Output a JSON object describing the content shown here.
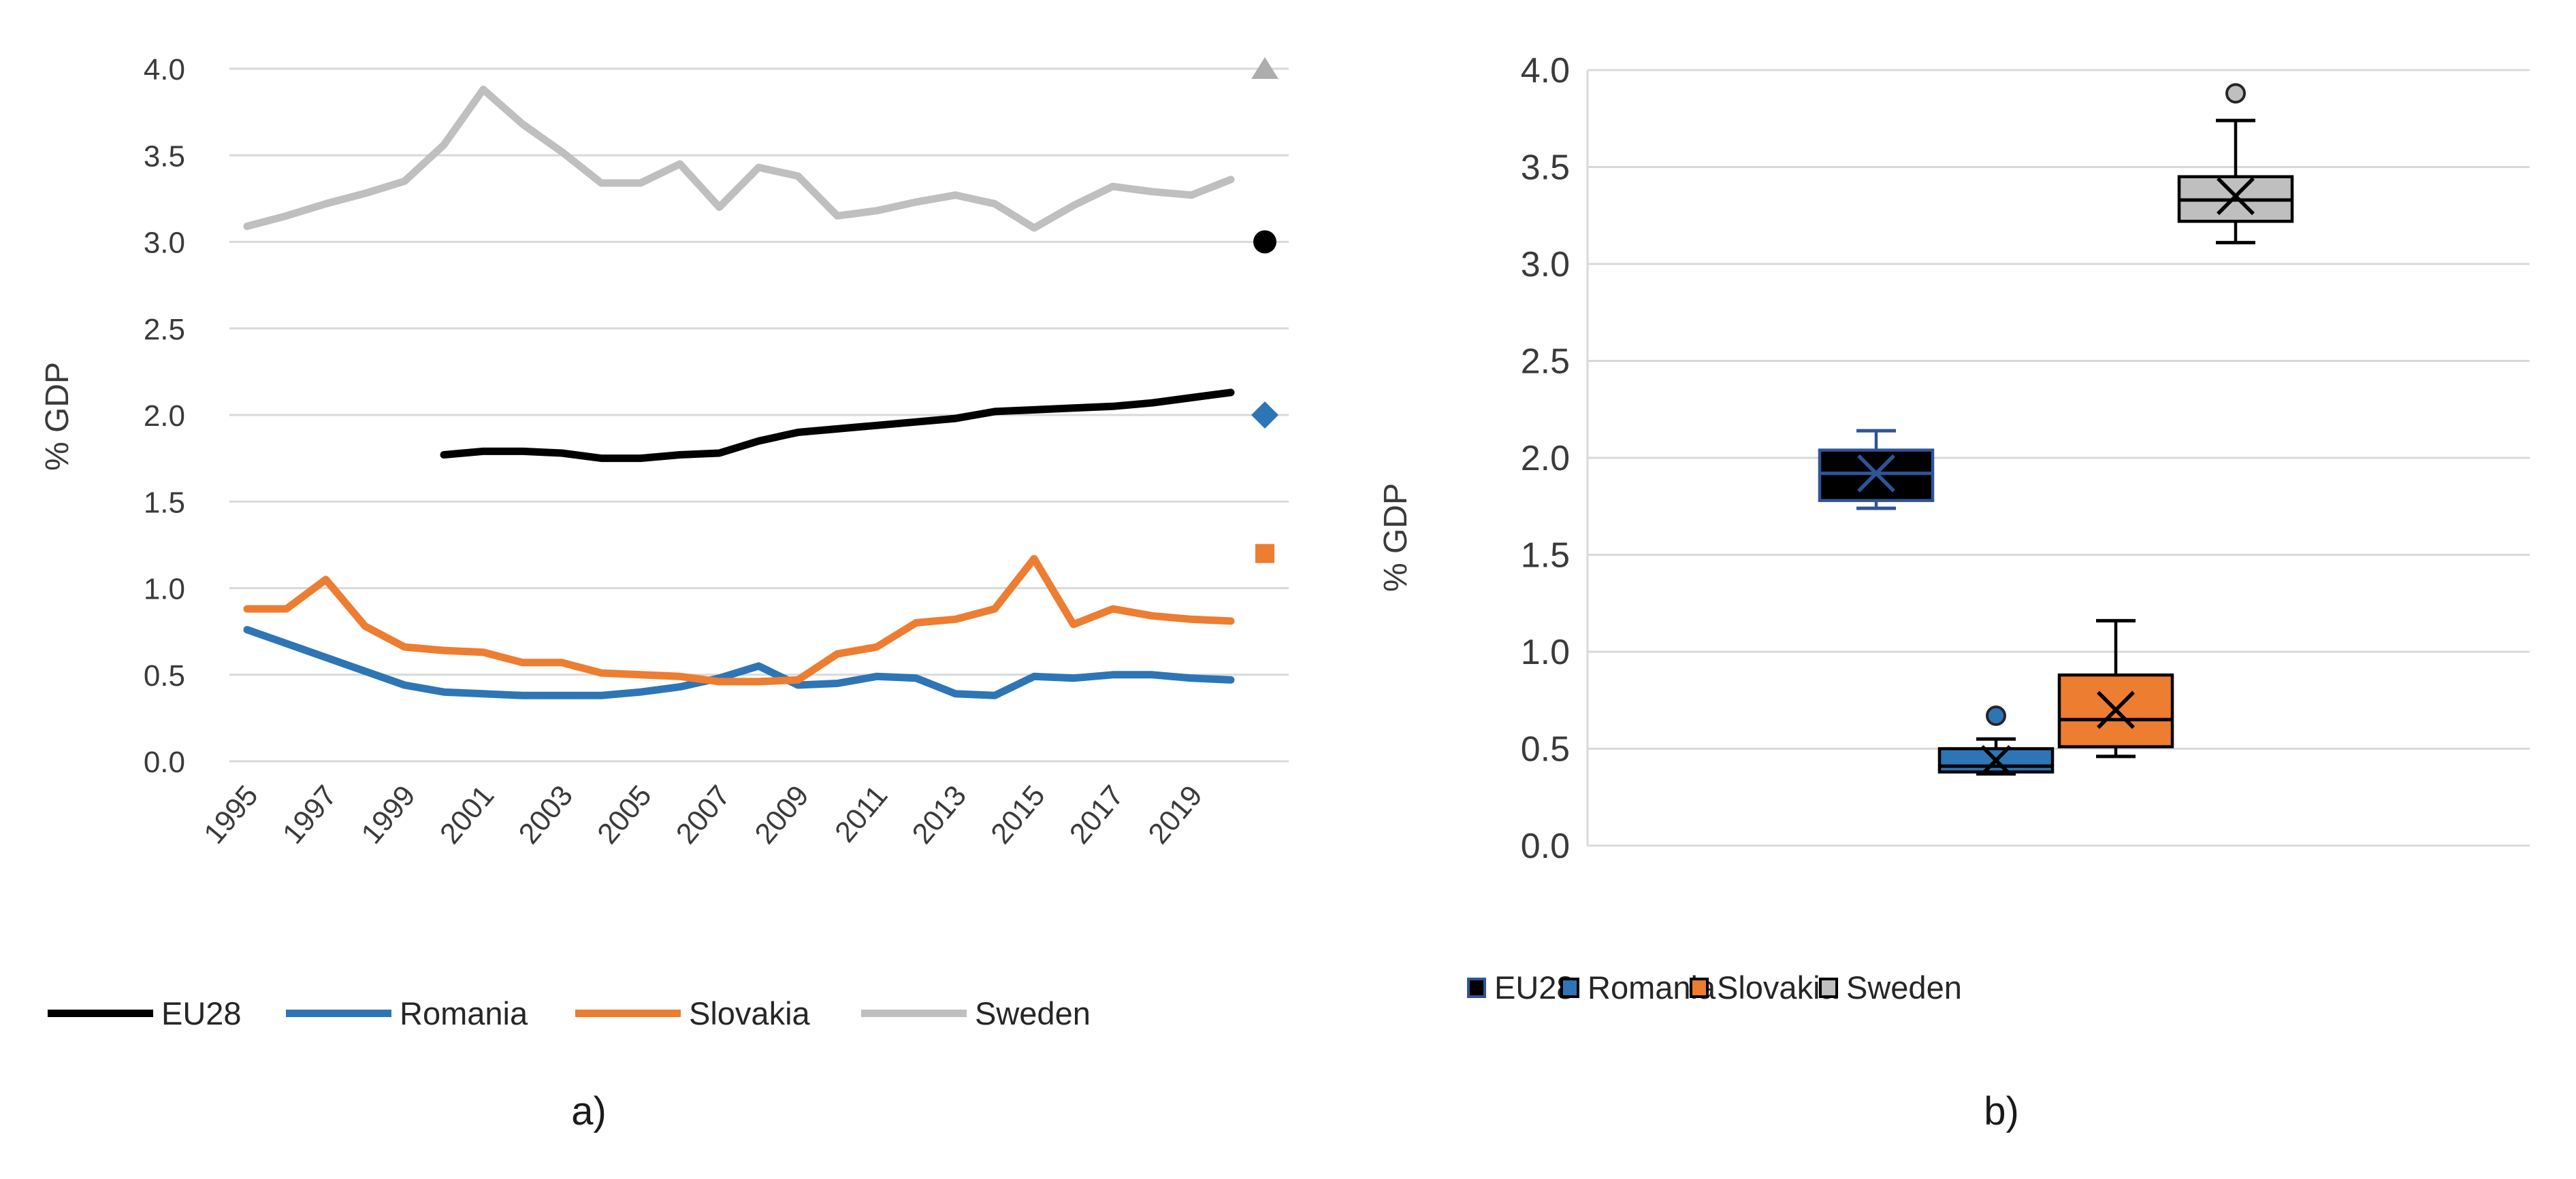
{
  "captions": {
    "a": "a)",
    "b": "b)"
  },
  "axis": {
    "ylabel": "% GDP",
    "ytick_labels": [
      "4.0",
      "3.5",
      "3.0",
      "2.5",
      "2.0",
      "1.5",
      "1.0",
      "0.5",
      "0.0"
    ],
    "ytick_values": [
      4.0,
      3.5,
      3.0,
      2.5,
      2.0,
      1.5,
      1.0,
      0.5,
      0.0
    ],
    "xtick_labels": [
      "1995",
      "1997",
      "1999",
      "2001",
      "2003",
      "2005",
      "2007",
      "2009",
      "2011",
      "2013",
      "2015",
      "2017",
      "2019"
    ]
  },
  "colors": {
    "eu28": "#000000",
    "eu28_accent": "#2F5597",
    "romania": "#2E75B6",
    "slovakia": "#ED7D31",
    "sweden": "#BFBFBF",
    "sweden_marker": "#ADADAD",
    "gridline": "#D9D9D9",
    "axis_text": "#3A3A3A",
    "outlier_rim": "#262626"
  },
  "legend": [
    "EU28",
    "Romania",
    "Slovakia",
    "Sweden"
  ],
  "chart_data": [
    {
      "type": "line",
      "title": "a)",
      "ylabel": "% GDP",
      "ylim": [
        0.0,
        4.0
      ],
      "grid": true,
      "legend_position": "bottom",
      "x": [
        1995,
        1996,
        1997,
        1998,
        1999,
        2000,
        2001,
        2002,
        2003,
        2004,
        2005,
        2006,
        2007,
        2008,
        2009,
        2010,
        2011,
        2012,
        2013,
        2014,
        2015,
        2016,
        2017,
        2018,
        2019,
        2020
      ],
      "xtick_labels": [
        "1995",
        "1997",
        "1999",
        "2001",
        "2003",
        "2005",
        "2007",
        "2009",
        "2011",
        "2013",
        "2015",
        "2017",
        "2019"
      ],
      "series": [
        {
          "name": "EU28",
          "color_key": "eu28",
          "values": [
            null,
            null,
            null,
            null,
            null,
            1.77,
            1.79,
            1.79,
            1.78,
            1.75,
            1.75,
            1.77,
            1.78,
            1.85,
            1.9,
            1.92,
            1.94,
            1.96,
            1.98,
            2.02,
            2.03,
            2.04,
            2.05,
            2.07,
            2.1,
            2.13
          ]
        },
        {
          "name": "Romania",
          "color_key": "romania",
          "values": [
            0.76,
            0.68,
            0.6,
            0.52,
            0.44,
            0.4,
            0.39,
            0.38,
            0.38,
            0.38,
            0.4,
            0.43,
            0.48,
            0.55,
            0.44,
            0.45,
            0.49,
            0.48,
            0.39,
            0.38,
            0.49,
            0.48,
            0.5,
            0.5,
            0.48,
            0.47
          ]
        },
        {
          "name": "Slovakia",
          "color_key": "slovakia",
          "values": [
            0.88,
            0.88,
            1.05,
            0.78,
            0.66,
            0.64,
            0.63,
            0.57,
            0.57,
            0.51,
            0.5,
            0.49,
            0.46,
            0.46,
            0.47,
            0.62,
            0.66,
            0.8,
            0.82,
            0.88,
            1.17,
            0.79,
            0.88,
            0.84,
            0.82,
            0.81
          ]
        },
        {
          "name": "Sweden",
          "color_key": "sweden",
          "values": [
            3.09,
            3.15,
            3.22,
            3.28,
            3.35,
            3.56,
            3.88,
            3.68,
            3.52,
            3.34,
            3.34,
            3.45,
            3.2,
            3.43,
            3.38,
            3.15,
            3.18,
            3.23,
            3.27,
            3.22,
            3.08,
            3.21,
            3.32,
            3.29,
            3.27,
            3.36
          ]
        }
      ],
      "target_markers": [
        {
          "name": "Sweden target",
          "value": 4.0,
          "shape": "triangle",
          "color_key": "sweden_marker"
        },
        {
          "name": "EU28 target",
          "value": 3.0,
          "shape": "circle",
          "color_key": "eu28"
        },
        {
          "name": "Romania target",
          "value": 2.0,
          "shape": "diamond",
          "color_key": "romania"
        },
        {
          "name": "Slovakia target",
          "value": 1.2,
          "shape": "square",
          "color_key": "slovakia"
        }
      ]
    },
    {
      "type": "box",
      "title": "b)",
      "ylabel": "% GDP",
      "ylim": [
        0.0,
        4.0
      ],
      "grid": true,
      "categories": [
        "EU28",
        "Romania",
        "Slovakia",
        "Sweden"
      ],
      "stats": [
        {
          "name": "EU28",
          "min": 1.74,
          "q1": 1.78,
          "median": 1.92,
          "mean": 1.92,
          "q3": 2.04,
          "max": 2.14,
          "outliers": [],
          "fill_key": "eu28",
          "line_key": "eu28_accent"
        },
        {
          "name": "Romania",
          "min": 0.37,
          "q1": 0.38,
          "median": 0.41,
          "mean": 0.44,
          "q3": 0.5,
          "max": 0.55,
          "outliers": [
            0.67
          ],
          "fill_key": "romania",
          "line_key": "eu28"
        },
        {
          "name": "Slovakia",
          "min": 0.46,
          "q1": 0.51,
          "median": 0.65,
          "mean": 0.7,
          "q3": 0.88,
          "max": 1.16,
          "outliers": [],
          "fill_key": "slovakia",
          "line_key": "eu28"
        },
        {
          "name": "Sweden",
          "min": 3.11,
          "q1": 3.22,
          "median": 3.33,
          "mean": 3.35,
          "q3": 3.45,
          "max": 3.74,
          "outliers": [
            3.88
          ],
          "fill_key": "sweden",
          "line_key": "eu28"
        }
      ]
    }
  ]
}
